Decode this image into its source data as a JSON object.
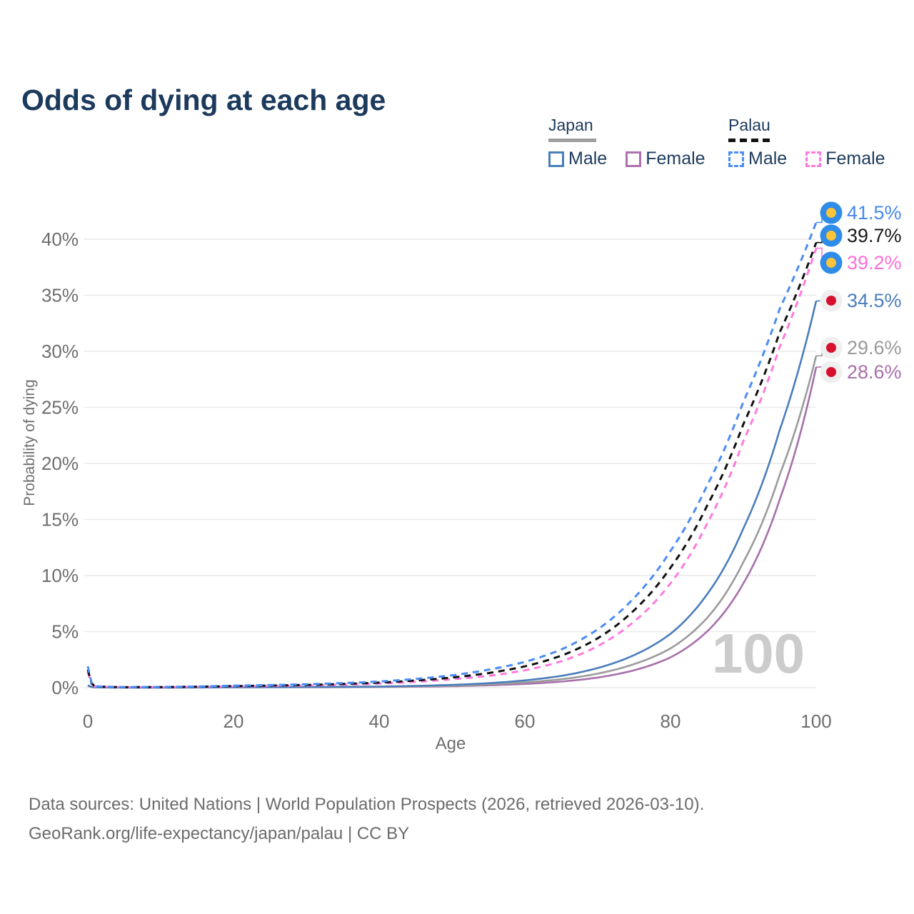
{
  "title": "Odds of dying at each age",
  "watermark": "100",
  "legend": {
    "groups": [
      {
        "label": "Japan",
        "line_style": "solid",
        "underline_color": "#9e9e9e",
        "items": [
          {
            "label": "Male",
            "color": "#4a7ebb"
          },
          {
            "label": "Female",
            "color": "#ad72ad"
          }
        ]
      },
      {
        "label": "Palau",
        "line_style": "dashed",
        "underline_color": "#111111",
        "items": [
          {
            "label": "Male",
            "color": "#4b8cf5"
          },
          {
            "label": "Female",
            "color": "#ff7ade"
          }
        ]
      }
    ]
  },
  "footer": {
    "line1": "Data sources: United Nations | World Population Prospects (2026, retrieved 2026-03-10).",
    "line2": "GeoRank.org/life-expectancy/japan/palau | CC BY"
  },
  "chart_data": {
    "type": "line",
    "title": "Odds of dying at each age",
    "xlabel": "Age",
    "ylabel": "Probability of dying",
    "xlim": [
      0,
      100
    ],
    "ylim_pct": [
      0,
      43
    ],
    "x_ticks": [
      0,
      20,
      40,
      60,
      80,
      100
    ],
    "y_ticks_pct": [
      0,
      5,
      10,
      15,
      20,
      25,
      30,
      35,
      40
    ],
    "grid": "horizontal",
    "legend_position": "top-right",
    "hover_age_indicator": "100",
    "flag_colors": {
      "palau": {
        "bg": "#2f8ce8",
        "center": "#f9c33c"
      },
      "japan": {
        "bg": "#efefef",
        "center": "#d8102e"
      }
    },
    "ages": [
      0,
      1,
      5,
      10,
      20,
      30,
      40,
      50,
      55,
      60,
      65,
      70,
      75,
      80,
      85,
      90,
      95,
      100
    ],
    "series": [
      {
        "id": "japan_female",
        "name": "Japan Female",
        "color": "#a770ab",
        "label_color": "#a770ab",
        "dash": false,
        "flag": "japan",
        "end_label": "28.6%",
        "end_value": 28.6,
        "values": [
          0.16,
          0.02,
          0.008,
          0.008,
          0.02,
          0.035,
          0.06,
          0.13,
          0.21,
          0.33,
          0.54,
          0.9,
          1.55,
          2.7,
          5.0,
          9.3,
          16.8,
          28.6
        ]
      },
      {
        "id": "japan_both",
        "name": "Japan",
        "color": "#9b9b9b",
        "label_color": "#9a9a9a",
        "dash": false,
        "flag": "japan",
        "end_label": "29.6%",
        "end_value": 29.6,
        "values": [
          0.18,
          0.025,
          0.009,
          0.009,
          0.03,
          0.05,
          0.08,
          0.18,
          0.29,
          0.47,
          0.75,
          1.25,
          2.1,
          3.5,
          6.2,
          11.2,
          19.0,
          29.6
        ]
      },
      {
        "id": "japan_male",
        "name": "Japan Male",
        "color": "#4a7ebb",
        "label_color": "#4a7ebb",
        "dash": false,
        "flag": "japan",
        "end_label": "34.5%",
        "end_value": 34.5,
        "values": [
          0.2,
          0.03,
          0.01,
          0.01,
          0.04,
          0.06,
          0.1,
          0.25,
          0.4,
          0.65,
          1.05,
          1.75,
          2.9,
          4.8,
          8.3,
          14.2,
          23.0,
          34.5
        ]
      },
      {
        "id": "palau_female",
        "name": "Palau Female",
        "color": "#ff7ade",
        "label_color": "#ff6ed8",
        "dash": true,
        "flag": "palau",
        "end_label": "39.2%",
        "end_value": 39.2,
        "values": [
          1.4,
          0.09,
          0.04,
          0.05,
          0.11,
          0.19,
          0.36,
          0.75,
          1.05,
          1.55,
          2.35,
          3.7,
          5.9,
          9.3,
          14.6,
          22.0,
          30.4,
          39.2
        ]
      },
      {
        "id": "palau_both",
        "name": "Palau",
        "color": "#111111",
        "label_color": "#1a1a1a",
        "dash": true,
        "flag": "palau",
        "end_label": "39.7%",
        "end_value": 39.7,
        "values": [
          1.6,
          0.1,
          0.04,
          0.05,
          0.14,
          0.24,
          0.45,
          0.9,
          1.3,
          1.9,
          2.85,
          4.4,
          6.9,
          10.7,
          16.2,
          23.5,
          31.7,
          39.7
        ]
      },
      {
        "id": "palau_male",
        "name": "Palau Male",
        "color": "#4b8cf5",
        "label_color": "#4688ee",
        "dash": true,
        "flag": "palau",
        "end_label": "41.5%",
        "end_value": 41.5,
        "values": [
          1.9,
          0.12,
          0.05,
          0.06,
          0.18,
          0.3,
          0.55,
          1.1,
          1.6,
          2.3,
          3.4,
          5.2,
          8.0,
          12.2,
          18.0,
          25.5,
          33.8,
          41.5
        ]
      }
    ],
    "end_label_rows": {
      "palau_male": 298,
      "palau_both": 330,
      "palau_female": 368,
      "japan_male": 421,
      "japan_both": 487,
      "japan_female": 521
    }
  }
}
